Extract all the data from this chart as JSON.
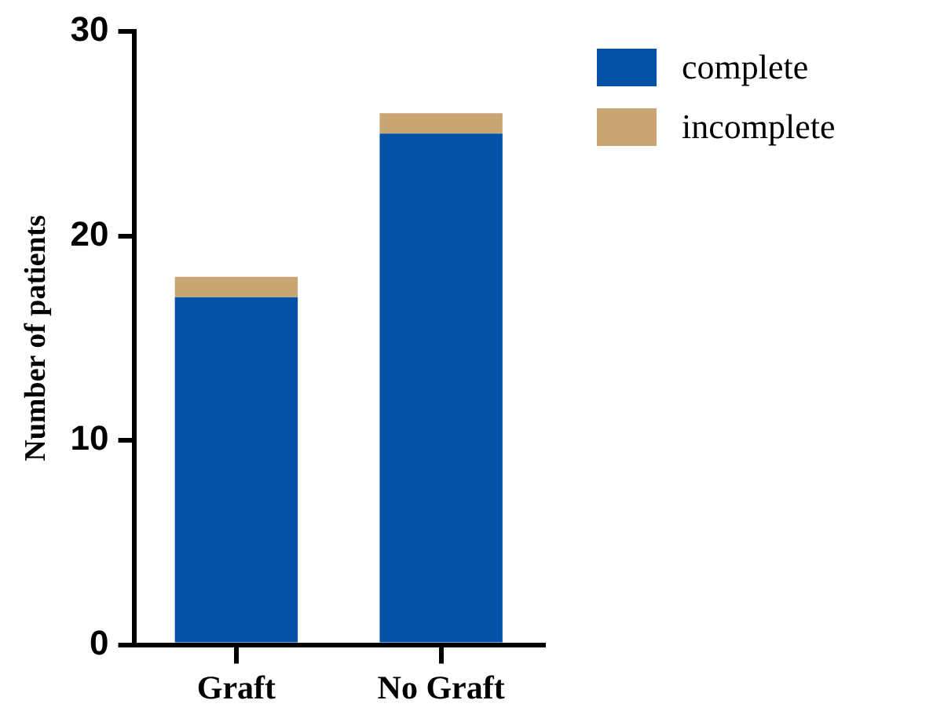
{
  "chart_data": {
    "type": "bar",
    "ylabel": "Number of patients",
    "categories": [
      "Graft",
      "No Graft"
    ],
    "stacked": true,
    "ylim": [
      0,
      30
    ],
    "yticks": [
      0,
      10,
      20,
      30
    ],
    "grid": false,
    "legend": "top right",
    "series": [
      {
        "name": "complete",
        "color": "#0352a8",
        "values": [
          17,
          25
        ]
      },
      {
        "name": "incomplete",
        "color": "#c9a574",
        "values": [
          1,
          1
        ]
      }
    ]
  }
}
